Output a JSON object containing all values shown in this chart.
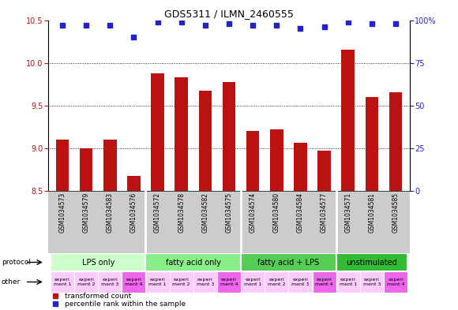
{
  "title": "GDS5311 / ILMN_2460555",
  "samples": [
    "GSM1034573",
    "GSM1034579",
    "GSM1034583",
    "GSM1034576",
    "GSM1034572",
    "GSM1034578",
    "GSM1034582",
    "GSM1034575",
    "GSM1034574",
    "GSM1034580",
    "GSM1034584",
    "GSM1034577",
    "GSM1034571",
    "GSM1034581",
    "GSM1034585"
  ],
  "bar_values": [
    9.1,
    9.0,
    9.1,
    8.67,
    9.88,
    9.83,
    9.67,
    9.77,
    9.2,
    9.22,
    9.06,
    8.97,
    10.15,
    9.6,
    9.65
  ],
  "dot_values": [
    97,
    97,
    97,
    90,
    99,
    99,
    97,
    98,
    97,
    97,
    95,
    96,
    99,
    98,
    98
  ],
  "bar_color": "#bb1111",
  "dot_color": "#2222cc",
  "ylim_left": [
    8.5,
    10.5
  ],
  "ylim_right": [
    0,
    100
  ],
  "yticks_left": [
    8.5,
    9.0,
    9.5,
    10.0,
    10.5
  ],
  "yticks_right": [
    0,
    25,
    50,
    75,
    100
  ],
  "protocol_groups": [
    {
      "label": "LPS only",
      "start": 0,
      "end": 4,
      "color": "#ccffcc"
    },
    {
      "label": "fatty acid only",
      "start": 4,
      "end": 8,
      "color": "#88ee88"
    },
    {
      "label": "fatty acid + LPS",
      "start": 8,
      "end": 12,
      "color": "#55cc55"
    },
    {
      "label": "unstimulated",
      "start": 12,
      "end": 15,
      "color": "#33bb33"
    }
  ],
  "other_labels": [
    "experi\nment 1",
    "experi\nment 2",
    "experi\nment 3",
    "experi\nment 4",
    "experi\nment 1",
    "experi\nment 2",
    "experi\nment 3",
    "experi\nment 4",
    "experi\nment 1",
    "experi\nment 2",
    "experi\nment 3",
    "experi\nment 4",
    "experi\nment 1",
    "experi\nment 3",
    "experi\nment 4"
  ],
  "other_colors": [
    "#ffccff",
    "#ffccff",
    "#ffccff",
    "#ee66ee",
    "#ffccff",
    "#ffccff",
    "#ffccff",
    "#ee66ee",
    "#ffccff",
    "#ffccff",
    "#ffccff",
    "#ee66ee",
    "#ffccff",
    "#ffccff",
    "#ee66ee"
  ],
  "legend_bar_label": "transformed count",
  "legend_dot_label": "percentile rank within the sample",
  "background_color": "#ffffff",
  "sample_box_color": "#cccccc",
  "sample_divider_color": "#ffffff"
}
